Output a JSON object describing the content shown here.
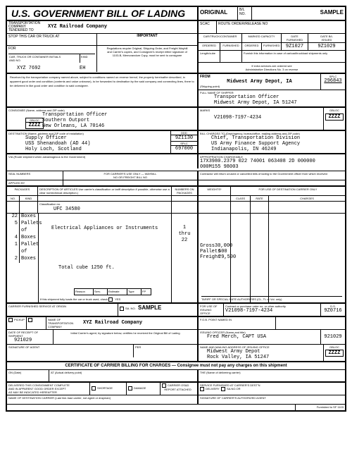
{
  "header": {
    "title": "U.S. GOVERNMENT BILL OF LADING",
    "original": "ORIGINAL",
    "blno_label": "B/L\nNO.",
    "sample": "SAMPLE",
    "scac": "SCAC",
    "route": "ROUTE ORDER/RELEASE NO"
  },
  "carrier": {
    "label": "TRANSPORTATION\nCOMPANY\nTENDERED TO",
    "value": "XYZ Railroad Company"
  },
  "stop": {
    "label": "STOP THIS CAR OR TRUCK AT"
  },
  "important": {
    "title": "IMPORTANT",
    "body": "Regulations require Original, Shipping Order, and Freight Waybill and Carrier's copies, and Consignee's receipt either signature of 1103-B, Memorandum Copy, must be sent to consignee"
  },
  "cartruck": {
    "head1": "CAR/TRUCK/CONTAINER",
    "head2": "MARKED CAPACITY",
    "ordered": "ORDERED",
    "furnished": "FURNISHED",
    "date_furn": "DATE\nFURNISHED",
    "date_issued": "DATE B/L\nISSUED",
    "v_datefurn": "9Z1027",
    "v_dateiss": "9Z1029",
    "length": "Length/cube",
    "note": "Furnish this information in case of carload/truckload shipments only",
    "extra": "If extra services are ordered see\nAdministrative Directions No. 3 on reverse"
  },
  "for": {
    "label": "FOR",
    "cartruck_label": "CAR, TRUCK OR CONTAINER INITIALS\nAND NO.",
    "kind": "KIND",
    "value": "XYZ 7692",
    "kind_v": "EH"
  },
  "from": {
    "label": "FROM",
    "ship_point": "(Shipping point)",
    "value": "Midwest Army Depot, IA",
    "splc": "SPLC",
    "splc_v": "296843"
  },
  "received": "Received by the transportation company named above, subject to conditions named on reverse hereof, the property hereinafter described, in apparent good order and condition (contents and value unknown), to be forwarded to destination by the said company and connecting lines, there to be delivered in like good order and condition to said consignee.",
  "shipper": {
    "label": "FULL NAME OF SHIPPER",
    "l1": "Transportation Officer",
    "l2": "Midwest Army Depot, IA 51247"
  },
  "consignee": {
    "label": "CONSIGNEE (Name, address and ZIP code)",
    "l1": "Transportation Officer",
    "l2": "Southern Outport",
    "l3": "New Orleans, LA 70146",
    "gbloc": "GBLOC",
    "gbloc_v": "ZZZZ"
  },
  "marks": {
    "label": "MARKS",
    "value": "V21098-7197-4234",
    "gbloc": "GBLOC",
    "gbloc_v": "ZZZZ"
  },
  "dest": {
    "label": "DESTINATION (Name, address and ZIP code of installation)",
    "l1": "Supply Officer",
    "l2": "USS Shenandoah (AD 44)",
    "l3": "Holy Loch, Scotland",
    "ddd": "DDD",
    "ddd_v": "9Z1130",
    "splc": "SPLC",
    "splc_v": "697000"
  },
  "billto": {
    "label": "BILL CHARGES TO (Dept/agency, bureau/office, mailing address and ZIP code)",
    "l1": "Chief, Transportation Division",
    "l2": "US Army Finance Support Agency",
    "l3": "Indianapolis, IN 46249"
  },
  "via": {
    "label": "VIA (Route shipment when advantageous to the Government)"
  },
  "approp": {
    "label": "APPROPRIATION CHARGEABLE",
    "l1": "17X3980.2379 022 74001 063408 2D 000000",
    "l2": "000M155 98003"
  },
  "seals": {
    "label": "SEAL NUMBERS",
    "applied": "APPLIED BY"
  },
  "waybill": {
    "label": "FOR CARRIER'S USE ONLY — WAYBILL\nNO OR FREIGHT BILL NO"
  },
  "govnote": "Contractor will return unused or cancelled bills of lading to the Government officer from which received",
  "cols": {
    "pkg": "PACKAGES",
    "no": "NO.",
    "kind": "KIND",
    "desc": "DESCRIPTION OF ARTICLES  Use carrier's classification or tariff description if possible, otherwise use a clear nontechnical description.)",
    "numpkg": "NUMBERS ON\nPACKAGES",
    "wt": "WEIGHTS*",
    "dest": "FOR USE OF DESTINATION CARRIER ONLY",
    "class": "CLASS",
    "rate": "RATE",
    "charges": "CHARGES"
  },
  "class_no": {
    "label": "Classification no.",
    "value": "UFC 34580"
  },
  "items": [
    {
      "no": "22",
      "kind": "Boxes"
    },
    {
      "no": "5",
      "kind": "Pallets"
    },
    {
      "no": "",
      "kind": "of"
    },
    {
      "no": "4",
      "kind": "Boxes"
    },
    {
      "no": "1",
      "kind": "Pallet"
    },
    {
      "no": "",
      "kind": "of"
    },
    {
      "no": "2",
      "kind": "Boxes"
    }
  ],
  "desc_main": "Electrical Appliances or Instruments",
  "desc_cube": "Total cube 1250 ft.",
  "numpkg": {
    "l1": "1",
    "l2": "thru",
    "l3": "22"
  },
  "weights": {
    "gross_l": "Gross",
    "gross_v": "30,000",
    "pallet_l": "Pallets",
    "pallet_v": "500",
    "freight_l": "Freight",
    "freight_v": "29,500"
  },
  "footboxes": {
    "reason": "Reason",
    "serv": "Serv.",
    "est": "Estimate",
    "type": "Type",
    "fp": "FP"
  },
  "fully": "If this shipment fully loads the car or truck used, check",
  "yes": "YES",
  "tariff": "TARIFF OR SPECIAL RATE AUTHORITIES (CL, TL or Vol. only)",
  "origin_svc": {
    "label": "CARRIER FURNISHED SERVICE AT ORIGIN",
    "pickup": "PICKUP",
    "sano": "SA. NO.",
    "sample": "SAMPLE"
  },
  "name_trans": {
    "label": "NAME OF\nTRANSPORTATION\nCOMPANY",
    "value": "XYZ Railroad Company"
  },
  "issue": {
    "use_label": "FOR USE OF\nISSUING\nOFFICE",
    "contract_label": "Contract or purchase order no. or other authority",
    "value": "V21098-7197-4234",
    "fob": "F.O.B. POINT NAMED IN",
    "ds": "D.S.",
    "ds_v": "9Z0716"
  },
  "receipt": {
    "label": "DATE OF RECEIPT OF SHIPMENT",
    "value": "921029",
    "note": "Initial Carrier's agent, by signature below, certifies he received the Original Bill of Lading"
  },
  "issuing_officer": {
    "label": "ISSUING OFFICER (Name and title)",
    "value": "Fred Merch, CAPT USA",
    "date": "921029"
  },
  "agent": {
    "label": "SIGNATURE OF AGENT",
    "per": "PER"
  },
  "issuing_office": {
    "label": "NAME AND MAILING ADDRESS OF ISSUING OFFICE",
    "l1": "Midwest Army Depot",
    "l2": "Rock Valley, IA 51247",
    "gbloc": "GBLOC",
    "gbloc_v": "ZZZZ"
  },
  "cert": {
    "title": "CERTIFICATE OF CARRIER BILLING FOR CHARGES — Consignee must not pay any charges on this shipment",
    "on": "ON (Date)",
    "at": "AT (Actual delivery point)",
    "the": "THE (Name of delivering carrier)"
  },
  "bottom": {
    "delivered": "DELIVERED THIS CONSIGNMENT COMPLETE\nAND IN APPARENT GOOD ORDER EXCEPT\nAS MAY BE INDICATED HEREAFTER",
    "short": "SHORTAGE",
    "damage": "DAMAGE",
    "report": "CARRIER OS&D\nREPORT ATTACHED",
    "svc": "SERVICE FURNISHED AT CARRIER'S DEST'N",
    "delivery": "DELIVERY",
    "sano": "SA.NO.OR",
    "dest_carrier": "NAME OF DESTINATION CARRIER (Last line-haul carrier, not agent or drayman)",
    "sig": "SIGNATURE OF CARRIER'S AUTHORIZED AGENT",
    "form": "Furnished to SF 1103"
  }
}
